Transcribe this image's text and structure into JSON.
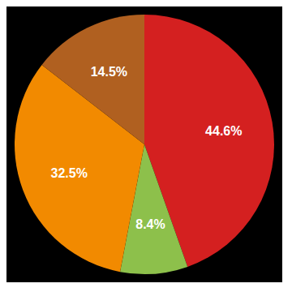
{
  "chart_data": {
    "type": "pie",
    "values": [
      44.6,
      8.4,
      32.5,
      14.5
    ],
    "value_labels": [
      "44.6%",
      "8.4%",
      "32.5%",
      "14.5%"
    ],
    "colors": [
      "#d42020",
      "#8dc04b",
      "#f28a00",
      "#b06020"
    ],
    "data_labels": true
  }
}
